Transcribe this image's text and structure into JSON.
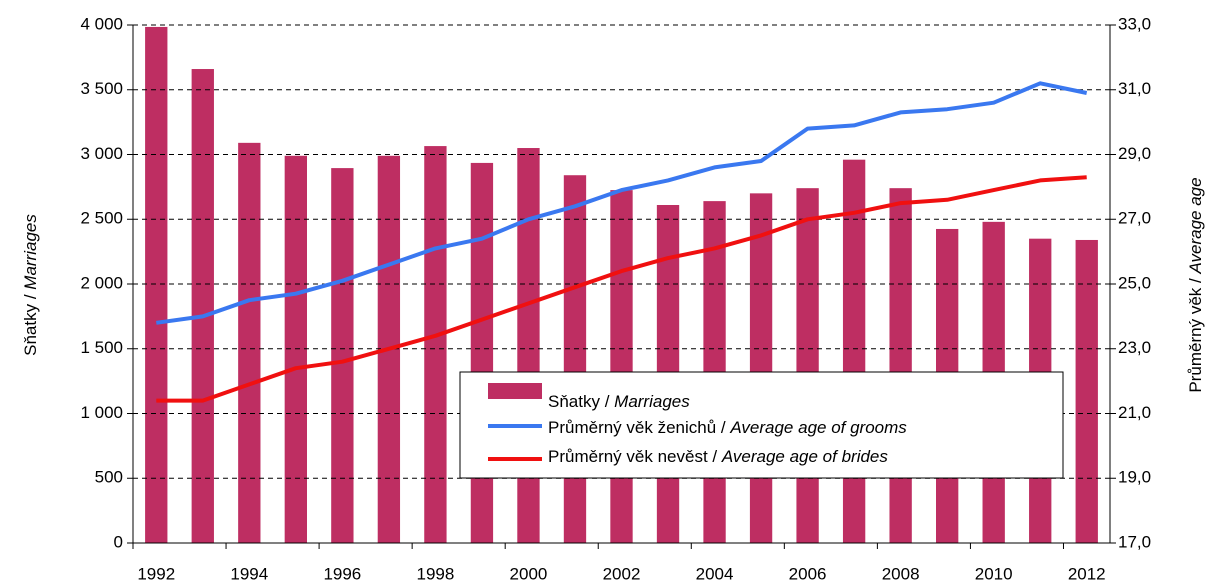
{
  "chart_data": {
    "type": "bar",
    "categories": [
      "1992",
      null,
      "1994",
      null,
      "1996",
      null,
      "1998",
      null,
      "2000",
      null,
      "2002",
      null,
      "2004",
      null,
      "2006",
      null,
      "2008",
      null,
      "2010",
      null,
      "2012"
    ],
    "series": [
      {
        "name": "Sňatky /",
        "name_en": "Marriages",
        "type": "bar",
        "color": "#be2e62",
        "values": [
          3985,
          3660,
          3090,
          2990,
          2895,
          2990,
          3065,
          2935,
          3050,
          2840,
          2725,
          2610,
          2640,
          2700,
          2740,
          2960,
          2740,
          2425,
          2480,
          2350,
          2340
        ]
      },
      {
        "name": "Průměrný věk ženichů /",
        "name_en": "Average age of grooms",
        "type": "line",
        "axis": "y2",
        "color": "#3a78f0",
        "values": [
          23.8,
          24.0,
          24.5,
          24.7,
          25.1,
          25.6,
          26.1,
          26.4,
          27.0,
          27.4,
          27.9,
          28.2,
          28.6,
          28.8,
          29.8,
          29.9,
          30.3,
          30.4,
          30.6,
          31.2,
          30.9
        ]
      },
      {
        "name": "Průměrný věk nevěst /",
        "name_en": "Average age of brides",
        "type": "line",
        "axis": "y2",
        "color": "#f01010",
        "values": [
          21.4,
          21.4,
          21.9,
          22.4,
          22.6,
          23.0,
          23.4,
          23.9,
          24.4,
          24.9,
          25.4,
          25.8,
          26.1,
          26.5,
          27.0,
          27.2,
          27.5,
          27.6,
          27.9,
          28.2,
          28.3
        ]
      }
    ],
    "y_label": "Sňatky /",
    "y_label_en": "Marriages",
    "y2_label": "Průměrný věk /",
    "y2_label_en": "Average age",
    "ylim": [
      0,
      4000
    ],
    "yticks": [
      0,
      500,
      {
        "value": 1000,
        "label": "1 000"
      },
      {
        "value": 1500,
        "label": "1 500"
      },
      {
        "value": 2000,
        "label": "2 000"
      },
      {
        "value": 2500,
        "label": "2 500"
      },
      {
        "value": 3000,
        "label": "3 000"
      },
      {
        "value": 3500,
        "label": "3 500"
      },
      {
        "value": 4000,
        "label": "4 000"
      }
    ],
    "y2lim": [
      17,
      33
    ],
    "y2ticks": [
      {
        "value": 17,
        "label": "17,0"
      },
      {
        "value": 19,
        "label": "19,0"
      },
      {
        "value": 21,
        "label": "21,0"
      },
      {
        "value": 23,
        "label": "23,0"
      },
      {
        "value": 25,
        "label": "25,0"
      },
      {
        "value": 27,
        "label": "27,0"
      },
      {
        "value": 29,
        "label": "29,0"
      },
      {
        "value": 31,
        "label": "31,0"
      },
      {
        "value": 33,
        "label": "33,0"
      }
    ],
    "grid": true
  }
}
